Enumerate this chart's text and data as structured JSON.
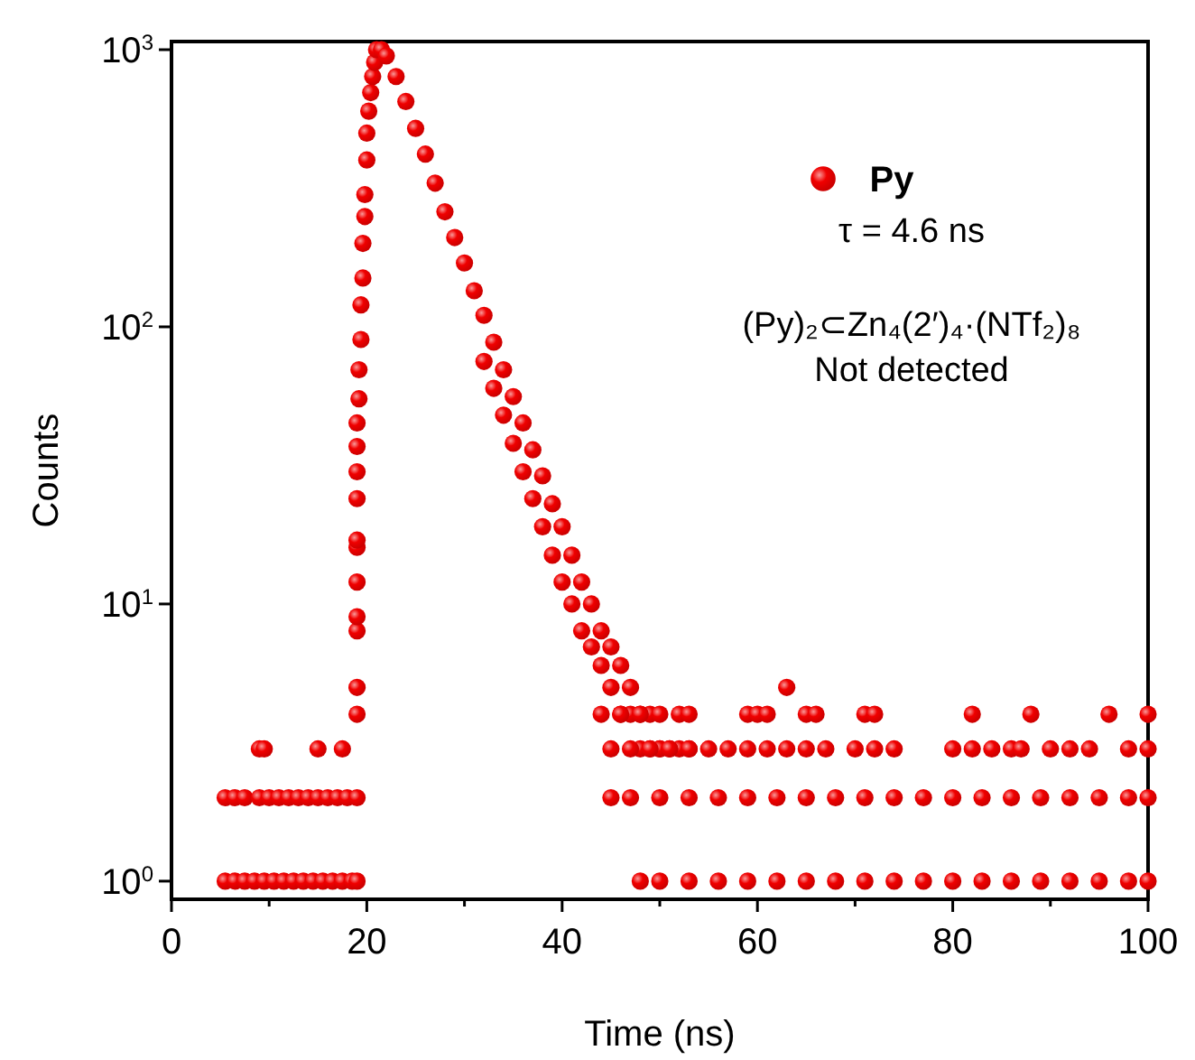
{
  "chart_data": {
    "type": "scatter",
    "xlabel": "Time (ns)",
    "ylabel": "Counts",
    "log": "y",
    "grid": false,
    "legend": "top right",
    "marker": "circle",
    "xlim": [
      0,
      100
    ],
    "ylim": [
      0.86,
      1070
    ],
    "xticks": [
      0,
      {
        "value": 10,
        "label": null
      },
      20,
      {
        "value": 30,
        "label": null
      },
      40,
      {
        "value": 50,
        "label": null
      },
      60,
      {
        "value": 70,
        "label": null
      },
      80,
      {
        "value": 90,
        "label": null
      },
      100
    ],
    "yticks": [
      {
        "value": 1,
        "label": "10$^{0}$"
      },
      {
        "value": 10,
        "label": "10$^{1}$"
      },
      {
        "value": 100,
        "label": "10$^{2}$"
      },
      {
        "value": 1000,
        "label": "10$^{3}$"
      }
    ],
    "annotations": [
      "τ = 4.6 ns",
      "(Py)₂⊂Zn₄(2′)₄·(NTf₂)₈",
      "Not detected"
    ],
    "series": [
      {
        "name": "Py",
        "color": "#f00000",
        "x": [
          5.5,
          6.5,
          7.5,
          8.5,
          9.5,
          10.5,
          11.5,
          12.5,
          13.5,
          14.5,
          15.5,
          16.5,
          17.5,
          18.5,
          19,
          5.5,
          6.5,
          7.5,
          9,
          10,
          11,
          12,
          13,
          14,
          15,
          16,
          17,
          18,
          19,
          9,
          9.5,
          15,
          17.5,
          19,
          19,
          19,
          19,
          19,
          19,
          19,
          19,
          19,
          19,
          19,
          19.2,
          19.2,
          19.4,
          19.4,
          19.6,
          19.6,
          19.8,
          19.8,
          20,
          20,
          20.2,
          20.4,
          20.6,
          20.8,
          21,
          21.5,
          22,
          23,
          24,
          25,
          26,
          27,
          28,
          29,
          30,
          31,
          32,
          33,
          34,
          35,
          36,
          37,
          38,
          39,
          40,
          41,
          42,
          43,
          44,
          45,
          46,
          47,
          48,
          49,
          50,
          52,
          32,
          33,
          34,
          35,
          36,
          37,
          38,
          39,
          40,
          41,
          42,
          43,
          44,
          45,
          46,
          47,
          48,
          49,
          50,
          51,
          53,
          44,
          46,
          48,
          50,
          52,
          53,
          45,
          47,
          49,
          51,
          53,
          55,
          57,
          59,
          61,
          63,
          65,
          67,
          70,
          72,
          74,
          80,
          82,
          84,
          86,
          87,
          90,
          92,
          94,
          98,
          100,
          45,
          47,
          50,
          53,
          56,
          59,
          62,
          65,
          68,
          71,
          74,
          77,
          80,
          83,
          86,
          89,
          92,
          95,
          98,
          100,
          48,
          50,
          53,
          56,
          59,
          62,
          65,
          68,
          71,
          74,
          77,
          80,
          83,
          86,
          89,
          92,
          95,
          98,
          100,
          59,
          60,
          61,
          65,
          66,
          71,
          72,
          82,
          88,
          96,
          100,
          63
        ],
        "values": [
          1,
          1,
          1,
          1,
          1,
          1,
          1,
          1,
          1,
          1,
          1,
          1,
          1,
          1,
          1,
          2,
          2,
          2,
          2,
          2,
          2,
          2,
          2,
          2,
          2,
          2,
          2,
          2,
          2,
          3,
          3,
          3,
          3,
          4,
          5,
          8,
          9,
          12,
          16,
          17,
          24,
          30,
          37,
          45,
          55,
          70,
          90,
          120,
          150,
          200,
          250,
          300,
          400,
          500,
          600,
          700,
          800,
          900,
          1000,
          1000,
          950,
          800,
          650,
          520,
          420,
          330,
          260,
          210,
          170,
          135,
          110,
          88,
          70,
          56,
          45,
          36,
          29,
          23,
          19,
          15,
          12,
          10,
          8,
          7,
          6,
          5,
          4,
          4,
          3,
          3,
          75,
          60,
          48,
          38,
          30,
          24,
          19,
          15,
          12,
          10,
          8,
          7,
          6,
          5,
          4,
          4,
          3,
          3,
          3,
          3,
          3,
          4,
          4,
          4,
          4,
          4,
          4,
          3,
          3,
          3,
          3,
          3,
          3,
          3,
          3,
          3,
          3,
          3,
          3,
          3,
          3,
          3,
          3,
          3,
          3,
          3,
          3,
          3,
          3,
          3,
          3,
          3,
          2,
          2,
          2,
          2,
          2,
          2,
          2,
          2,
          2,
          2,
          2,
          2,
          2,
          2,
          2,
          2,
          2,
          2,
          2,
          2,
          1,
          1,
          1,
          1,
          1,
          1,
          1,
          1,
          1,
          1,
          1,
          1,
          1,
          1,
          1,
          1,
          1,
          1,
          1,
          4,
          4,
          4,
          4,
          4,
          4,
          4,
          4,
          4,
          4,
          4,
          5
        ]
      }
    ]
  }
}
